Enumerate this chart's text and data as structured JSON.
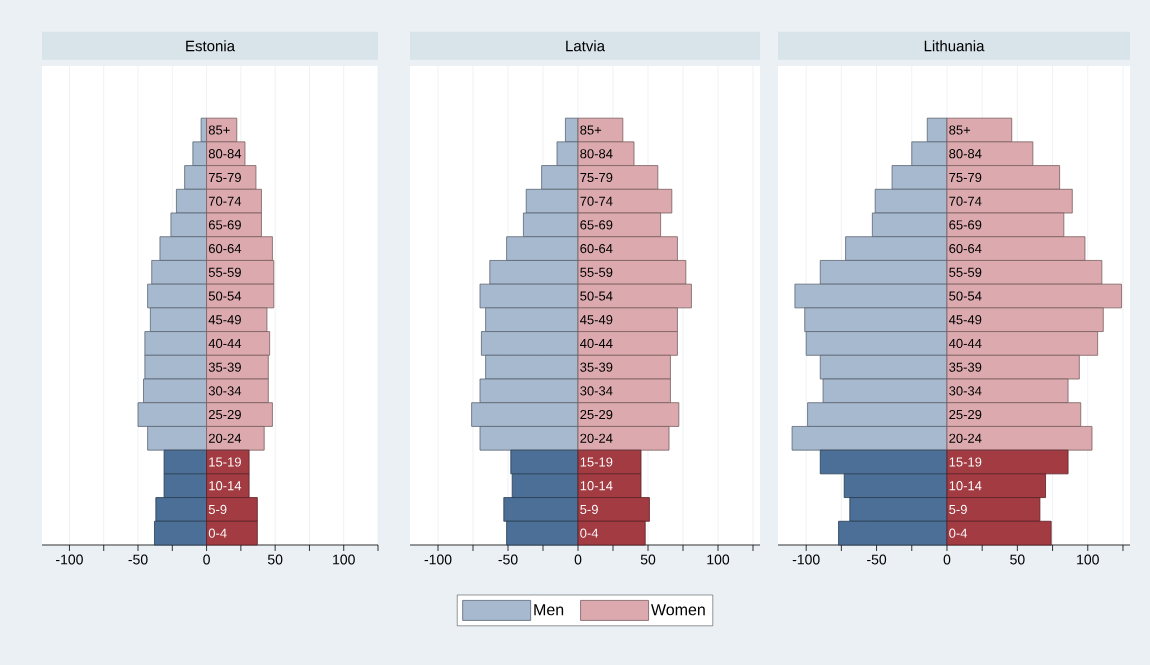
{
  "chart_data": [
    {
      "type": "bar",
      "orientation": "horizontal",
      "stacked": true,
      "title": "Estonia",
      "categories": [
        "85+",
        "80-84",
        "75-79",
        "70-74",
        "65-69",
        "60-64",
        "55-59",
        "50-54",
        "45-49",
        "40-44",
        "35-39",
        "30-34",
        "25-29",
        "20-24",
        "15-19",
        "10-14",
        "5-9",
        "0-4"
      ],
      "series": [
        {
          "colors": [
            "#a7b9cf",
            "#a7b9cf",
            "#a7b9cf",
            "#a7b9cf",
            "#a7b9cf",
            "#a7b9cf",
            "#a7b9cf",
            "#a7b9cf",
            "#a7b9cf",
            "#a7b9cf",
            "#a7b9cf",
            "#a7b9cf",
            "#a7b9cf",
            "#a7b9cf",
            "#4b6f96",
            "#4b6f96",
            "#4b6f96",
            "#4b6f96"
          ],
          "values": [
            -4,
            -10,
            -16,
            -22,
            -26,
            -34,
            -40,
            -43,
            -41,
            -45,
            -45,
            -46,
            -50,
            -43,
            -31,
            -31,
            -37,
            -38
          ]
        },
        {
          "colors": [
            "#dcaaae",
            "#dcaaae",
            "#dcaaae",
            "#dcaaae",
            "#dcaaae",
            "#dcaaae",
            "#dcaaae",
            "#dcaaae",
            "#dcaaae",
            "#dcaaae",
            "#dcaaae",
            "#dcaaae",
            "#dcaaae",
            "#dcaaae",
            "#a33b42",
            "#a33b42",
            "#a33b42",
            "#a33b42"
          ],
          "values": [
            22,
            28,
            36,
            40,
            40,
            48,
            49,
            49,
            44,
            46,
            45,
            45,
            48,
            42,
            31,
            31,
            37,
            37
          ]
        }
      ],
      "xlim": [
        -120,
        125
      ],
      "xticks": [
        -100,
        {
          "value": -75,
          "label": null
        },
        -50,
        {
          "value": -25,
          "label": null
        },
        0,
        {
          "value": 25,
          "label": null
        },
        50,
        {
          "value": 75,
          "label": null
        },
        100,
        {
          "value": 125,
          "label": null
        }
      ],
      "grid": "x"
    },
    {
      "type": "bar",
      "orientation": "horizontal",
      "stacked": true,
      "title": "Latvia",
      "categories": [
        "85+",
        "80-84",
        "75-79",
        "70-74",
        "65-69",
        "60-64",
        "55-59",
        "50-54",
        "45-49",
        "40-44",
        "35-39",
        "30-34",
        "25-29",
        "20-24",
        "15-19",
        "10-14",
        "5-9",
        "0-4"
      ],
      "series": [
        {
          "name": "Men",
          "color": "#a7b9cf",
          "colors": [
            "#a7b9cf",
            "#a7b9cf",
            "#a7b9cf",
            "#a7b9cf",
            "#a7b9cf",
            "#a7b9cf",
            "#a7b9cf",
            "#a7b9cf",
            "#a7b9cf",
            "#a7b9cf",
            "#a7b9cf",
            "#a7b9cf",
            "#a7b9cf",
            "#a7b9cf",
            "#4b6f96",
            "#4b6f96",
            "#4b6f96",
            "#4b6f96"
          ],
          "values": [
            -9,
            -15,
            -26,
            -37,
            -39,
            -51,
            -63,
            -70,
            -66,
            -69,
            -66,
            -70,
            -76,
            -70,
            -48,
            -47,
            -53,
            -51
          ]
        },
        {
          "name": "Women",
          "color": "#dcaaae",
          "colors": [
            "#dcaaae",
            "#dcaaae",
            "#dcaaae",
            "#dcaaae",
            "#dcaaae",
            "#dcaaae",
            "#dcaaae",
            "#dcaaae",
            "#dcaaae",
            "#dcaaae",
            "#dcaaae",
            "#dcaaae",
            "#dcaaae",
            "#dcaaae",
            "#a33b42",
            "#a33b42",
            "#a33b42",
            "#a33b42"
          ],
          "values": [
            32,
            40,
            57,
            67,
            59,
            71,
            77,
            81,
            71,
            71,
            66,
            66,
            72,
            65,
            45,
            45,
            51,
            48
          ]
        }
      ],
      "xlim": [
        -120,
        130
      ],
      "xticks": [
        -100,
        {
          "value": -75,
          "label": null
        },
        -50,
        {
          "value": -25,
          "label": null
        },
        0,
        {
          "value": 25,
          "label": null
        },
        50,
        {
          "value": 75,
          "label": null
        },
        100,
        {
          "value": 125,
          "label": null
        }
      ],
      "grid": "x",
      "legend": "bottom"
    },
    {
      "type": "bar",
      "orientation": "horizontal",
      "stacked": true,
      "title": "Lithuania",
      "categories": [
        "85+",
        "80-84",
        "75-79",
        "70-74",
        "65-69",
        "60-64",
        "55-59",
        "50-54",
        "45-49",
        "40-44",
        "35-39",
        "30-34",
        "25-29",
        "20-24",
        "15-19",
        "10-14",
        "5-9",
        "0-4"
      ],
      "series": [
        {
          "colors": [
            "#a7b9cf",
            "#a7b9cf",
            "#a7b9cf",
            "#a7b9cf",
            "#a7b9cf",
            "#a7b9cf",
            "#a7b9cf",
            "#a7b9cf",
            "#a7b9cf",
            "#a7b9cf",
            "#a7b9cf",
            "#a7b9cf",
            "#a7b9cf",
            "#a7b9cf",
            "#4b6f96",
            "#4b6f96",
            "#4b6f96",
            "#4b6f96"
          ],
          "values": [
            -14,
            -25,
            -39,
            -51,
            -53,
            -72,
            -90,
            -108,
            -101,
            -100,
            -90,
            -88,
            -99,
            -110,
            -90,
            -73,
            -69,
            -77
          ]
        },
        {
          "colors": [
            "#dcaaae",
            "#dcaaae",
            "#dcaaae",
            "#dcaaae",
            "#dcaaae",
            "#dcaaae",
            "#dcaaae",
            "#dcaaae",
            "#dcaaae",
            "#dcaaae",
            "#dcaaae",
            "#dcaaae",
            "#dcaaae",
            "#dcaaae",
            "#a33b42",
            "#a33b42",
            "#a33b42",
            "#a33b42"
          ],
          "values": [
            46,
            61,
            80,
            89,
            83,
            98,
            110,
            124,
            111,
            107,
            94,
            86,
            95,
            103,
            86,
            70,
            66,
            74
          ]
        }
      ],
      "xlim": [
        -120,
        130
      ],
      "xticks": [
        -100,
        {
          "value": -75,
          "label": null
        },
        -50,
        {
          "value": -25,
          "label": null
        },
        0,
        {
          "value": 25,
          "label": null
        },
        50,
        {
          "value": 75,
          "label": null
        },
        100,
        {
          "value": 125,
          "label": null
        }
      ],
      "grid": "x"
    }
  ]
}
